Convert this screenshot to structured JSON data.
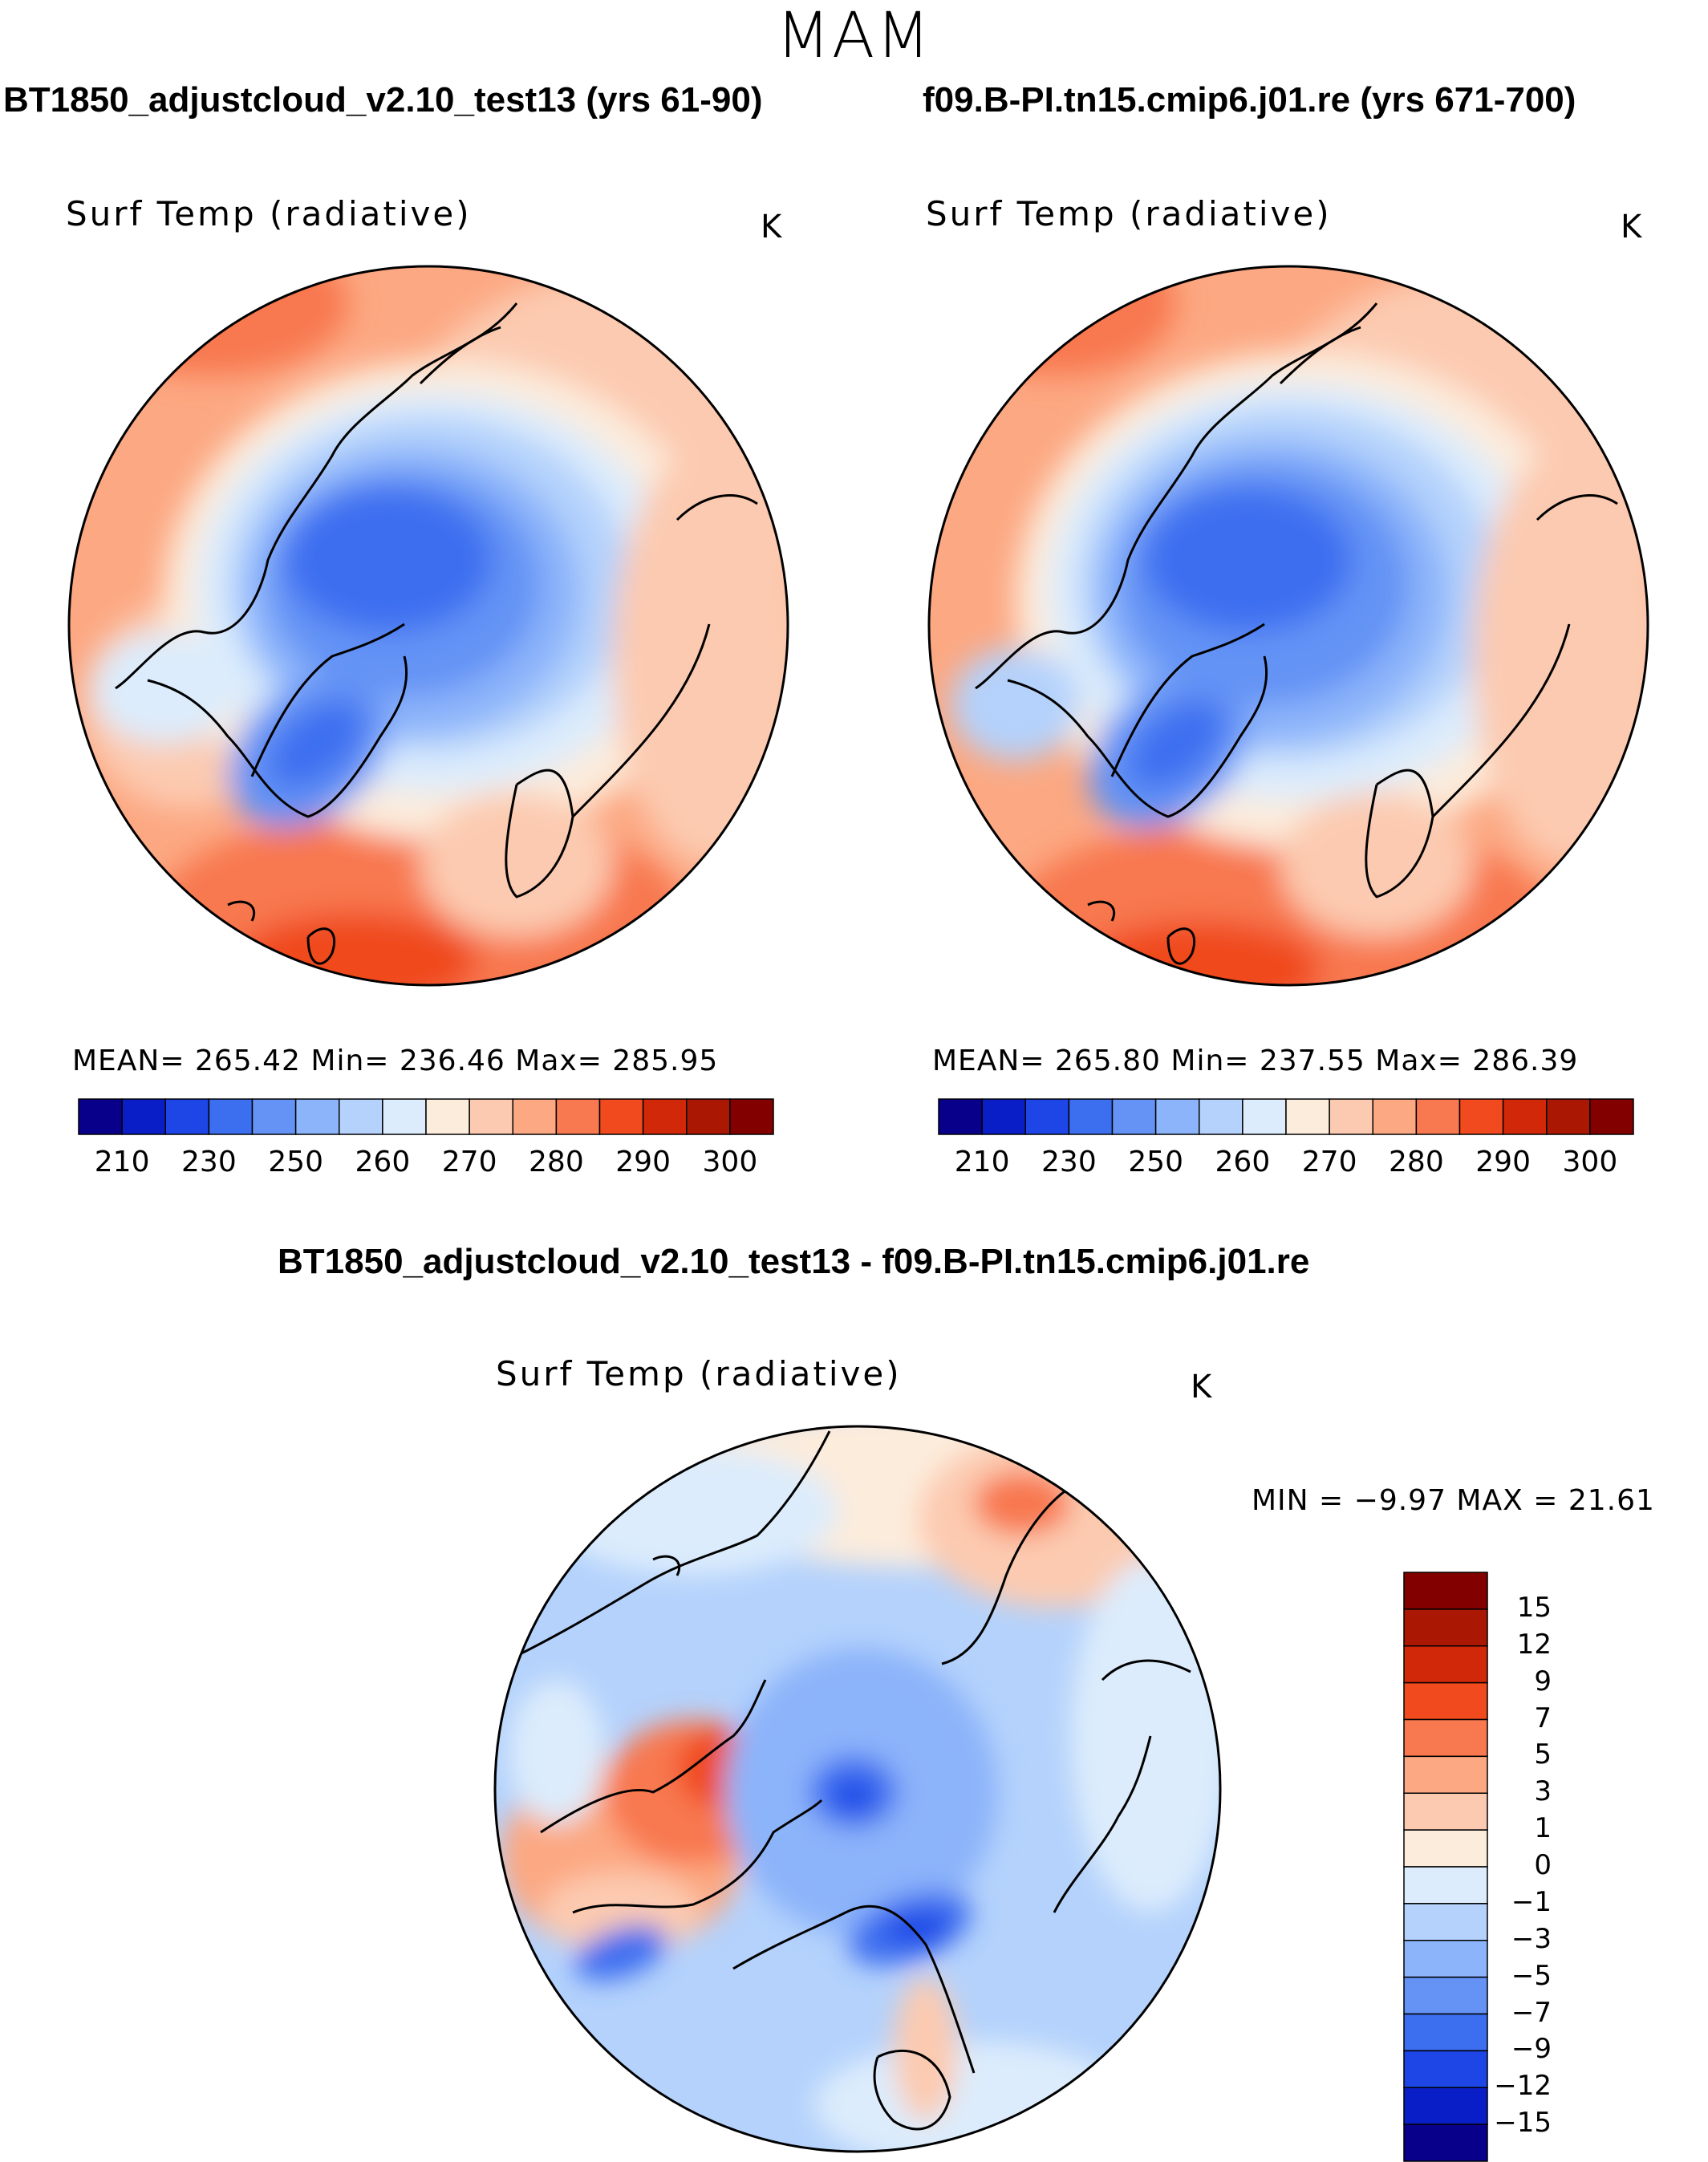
{
  "season": "MAM",
  "panels": {
    "left": {
      "case_title": "BT1850_adjustcloud_v2.10_test13 (yrs 61-90)",
      "var_label": "Surf Temp (radiative)",
      "unit": "K",
      "stats": "MEAN= 265.42   Min= 236.46   Max= 285.95"
    },
    "right": {
      "case_title": "f09.B-PI.tn15.cmip6.j01.re (yrs 671-700)",
      "var_label": "Surf Temp (radiative)",
      "unit": "K",
      "stats": "MEAN= 265.80   Min= 237.55   Max= 286.39"
    },
    "diff": {
      "case_title": "BT1850_adjustcloud_v2.10_test13 - f09.B-PI.tn15.cmip6.j01.re",
      "var_label": "Surf Temp (radiative)",
      "unit": "K",
      "stats": "MIN =   −9.97  MAX =   21.61"
    }
  },
  "chart_data": [
    {
      "type": "heatmap",
      "projection": "north polar stereographic",
      "title": "BT1850_adjustcloud_v2.10_test13 (yrs 61-90)",
      "variable": "Surf Temp (radiative)",
      "units": "K",
      "mean": 265.42,
      "min": 236.46,
      "max": 285.95,
      "colorbar_ticks": [
        210,
        230,
        250,
        260,
        270,
        280,
        290,
        300
      ],
      "colorbar_colors": [
        "#08008a",
        "#0a1ec8",
        "#1e46e6",
        "#3c6ef0",
        "#6493f5",
        "#8cb4fa",
        "#b4d2fc",
        "#dcecfc",
        "#fcecdc",
        "#fccab0",
        "#fca882",
        "#f87850",
        "#f04a1e",
        "#d2280a",
        "#aa1804",
        "#820000"
      ]
    },
    {
      "type": "heatmap",
      "projection": "north polar stereographic",
      "title": "f09.B-PI.tn15.cmip6.j01.re (yrs 671-700)",
      "variable": "Surf Temp (radiative)",
      "units": "K",
      "mean": 265.8,
      "min": 237.55,
      "max": 286.39,
      "colorbar_ticks": [
        210,
        230,
        250,
        260,
        270,
        280,
        290,
        300
      ],
      "colorbar_colors": [
        "#08008a",
        "#0a1ec8",
        "#1e46e6",
        "#3c6ef0",
        "#6493f5",
        "#8cb4fa",
        "#b4d2fc",
        "#dcecfc",
        "#fcecdc",
        "#fccab0",
        "#fca882",
        "#f87850",
        "#f04a1e",
        "#d2280a",
        "#aa1804",
        "#820000"
      ]
    },
    {
      "type": "heatmap",
      "projection": "north polar stereographic",
      "title": "BT1850_adjustcloud_v2.10_test13 - f09.B-PI.tn15.cmip6.j01.re",
      "variable": "Surf Temp (radiative)",
      "units": "K",
      "min": -9.97,
      "max": 21.61,
      "colorbar_ticks": [
        "15",
        "12",
        "9",
        "7",
        "5",
        "3",
        "1",
        "0",
        "−1",
        "−3",
        "−5",
        "−7",
        "−9",
        "−12",
        "−15"
      ],
      "colorbar_colors": [
        "#820000",
        "#aa1804",
        "#d2280a",
        "#f04a1e",
        "#f87850",
        "#fca882",
        "#fccab0",
        "#fcecdc",
        "#dcecfc",
        "#b4d2fc",
        "#8cb4fa",
        "#6493f5",
        "#3c6ef0",
        "#1e46e6",
        "#0a1ec8",
        "#08008a"
      ]
    }
  ]
}
